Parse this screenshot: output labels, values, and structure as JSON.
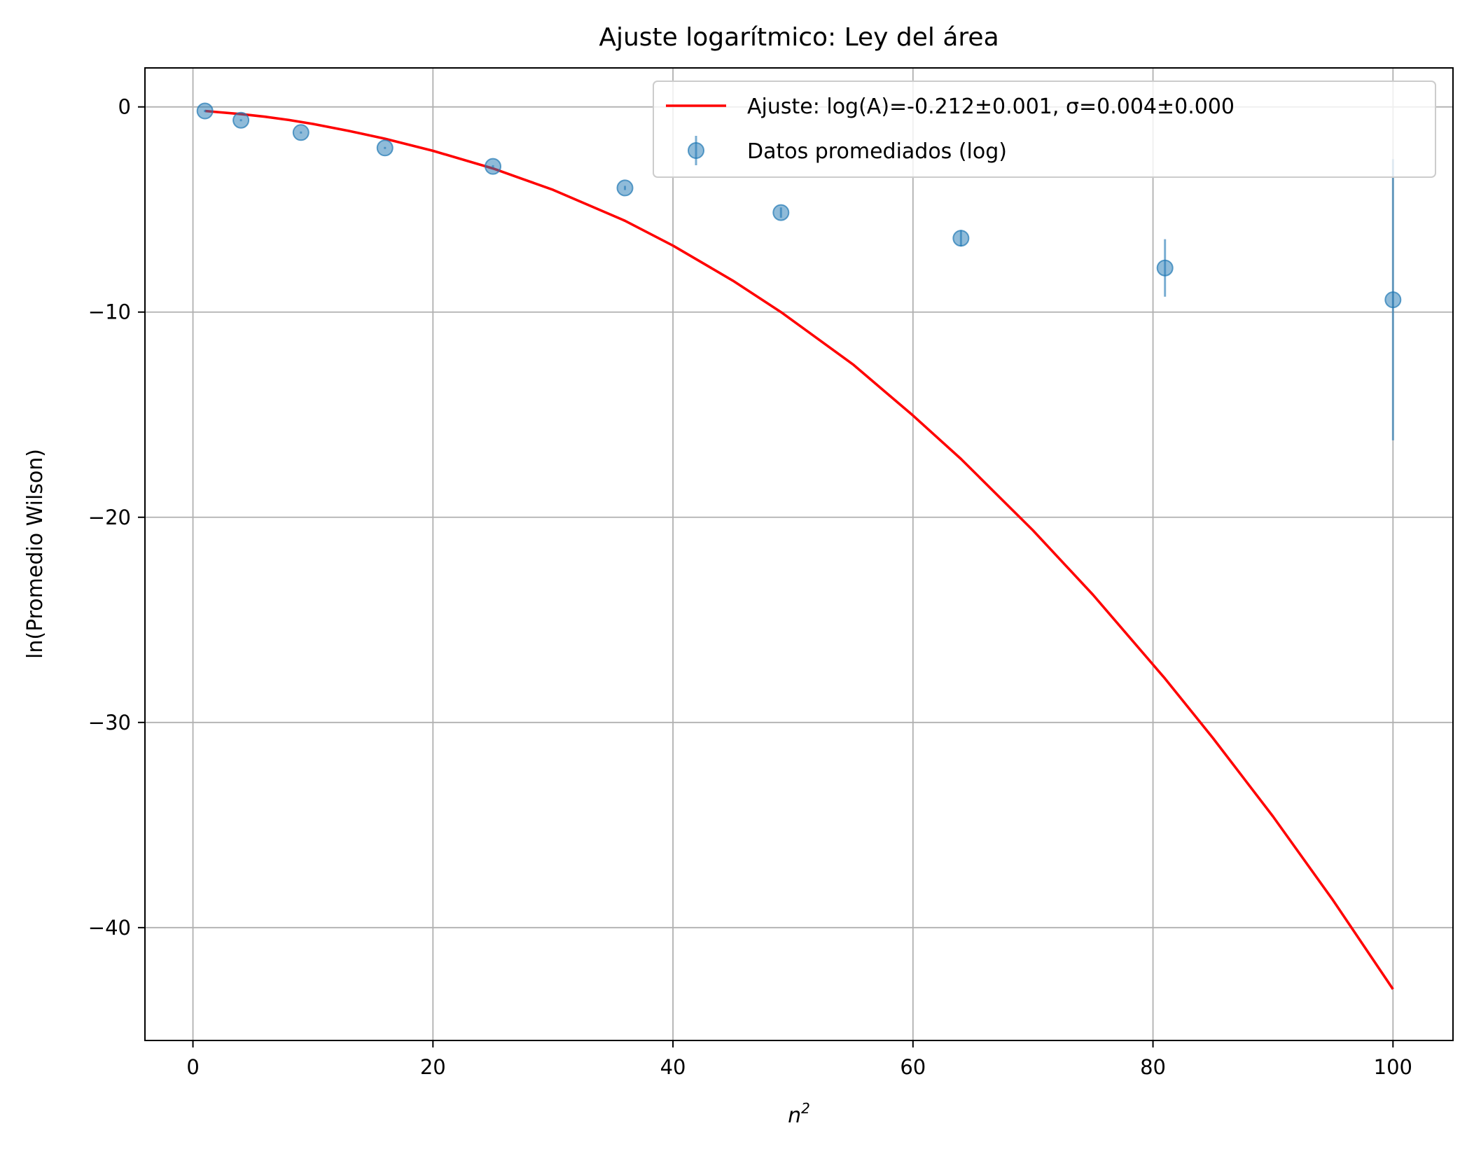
{
  "chart_data": {
    "type": "scatter",
    "title": "Ajuste logarítmico: Ley del área",
    "xlabel": "n",
    "xlabel_superscript": "2",
    "ylabel": "ln(Promedio Wilson)",
    "xlim": [
      -4,
      105
    ],
    "ylim": [
      -45.5,
      1.9
    ],
    "xticks": [
      0,
      20,
      40,
      60,
      80,
      100
    ],
    "yticks": [
      0,
      -10,
      -20,
      -30,
      -40
    ],
    "xtick_labels": [
      "0",
      "20",
      "40",
      "60",
      "80",
      "100"
    ],
    "ytick_labels": [
      "0",
      "−10",
      "−20",
      "−30",
      "−40"
    ],
    "grid": true,
    "legend_position": "top-right",
    "series": [
      {
        "name": "Ajuste: log(A)=-0.212±0.001, σ=0.004±0.000",
        "kind": "line",
        "color": "#ff0000",
        "x": [
          1,
          2,
          4,
          6,
          8,
          10,
          13,
          16,
          20,
          25,
          30,
          36,
          40,
          45,
          49,
          55,
          60,
          64,
          70,
          75,
          81,
          85,
          90,
          95,
          100
        ],
        "y": [
          -0.2,
          -0.25,
          -0.35,
          -0.48,
          -0.64,
          -0.83,
          -1.17,
          -1.55,
          -2.14,
          -3.0,
          -4.04,
          -5.55,
          -6.76,
          -8.47,
          -10.0,
          -12.55,
          -15.04,
          -17.16,
          -20.64,
          -23.78,
          -27.86,
          -30.76,
          -34.58,
          -38.66,
          -43.0
        ]
      },
      {
        "name": "Datos promediados (log)",
        "kind": "errorbar",
        "color": "#1f77b4",
        "x": [
          1,
          4,
          9,
          16,
          25,
          36,
          49,
          64,
          81,
          100
        ],
        "y": [
          -0.2,
          -0.65,
          -1.25,
          -2.0,
          -2.9,
          -3.95,
          -5.15,
          -6.4,
          -7.85,
          -9.4
        ],
        "yerr": [
          0.05,
          0.05,
          0.05,
          0.05,
          0.06,
          0.1,
          0.25,
          0.4,
          1.4,
          6.85
        ]
      }
    ]
  }
}
